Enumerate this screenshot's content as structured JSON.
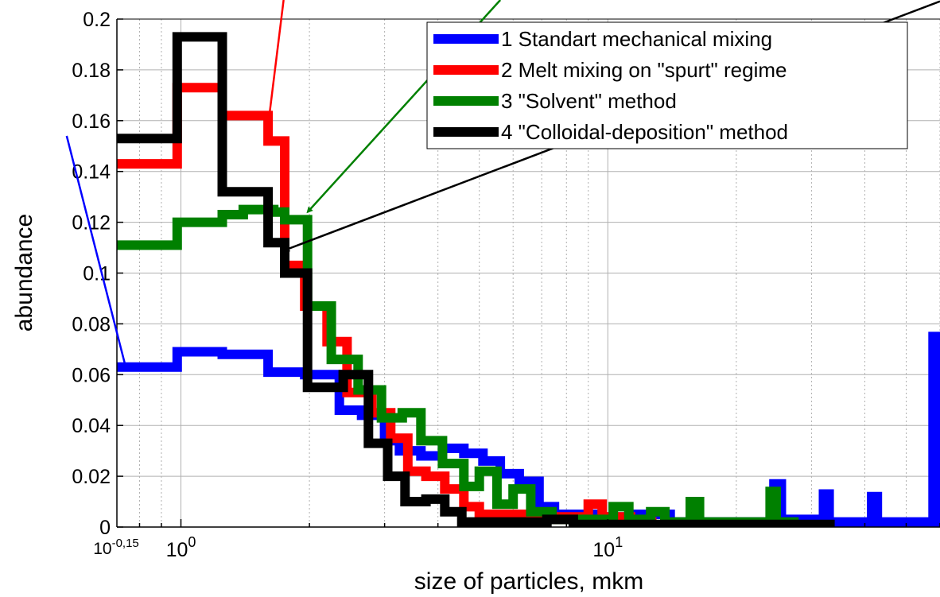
{
  "chart_data": {
    "type": "line",
    "step": true,
    "xscale": "log",
    "xlim": [
      0.708,
      60
    ],
    "ylim": [
      0,
      0.2
    ],
    "xlabel": "size of particles, mkm",
    "ylabel": "abundance",
    "grid": true,
    "legend_position": "top-right",
    "x_ticks": [
      {
        "value": 0.708,
        "base": "10",
        "exp": "-0,15"
      },
      {
        "value": 1,
        "base": "10",
        "exp": "0"
      },
      {
        "value": 10,
        "base": "10",
        "exp": "1"
      }
    ],
    "y_ticks": [
      "0",
      "0.02",
      "0.04",
      "0.06",
      "0.08",
      "0.1",
      "0.12",
      "0.14",
      "0.16",
      "0.18",
      "0.2"
    ],
    "series": [
      {
        "name": "1 Standart mechanical mixing",
        "color": "#0000ff",
        "points": [
          [
            0.708,
            0.063
          ],
          [
            0.98,
            0.063
          ],
          [
            0.98,
            0.069
          ],
          [
            1.25,
            0.069
          ],
          [
            1.25,
            0.068
          ],
          [
            1.6,
            0.068
          ],
          [
            1.6,
            0.061
          ],
          [
            1.95,
            0.061
          ],
          [
            1.95,
            0.06
          ],
          [
            2.35,
            0.06
          ],
          [
            2.35,
            0.046
          ],
          [
            2.65,
            0.046
          ],
          [
            2.65,
            0.044
          ],
          [
            3.0,
            0.044
          ],
          [
            3.0,
            0.034
          ],
          [
            3.25,
            0.034
          ],
          [
            3.25,
            0.03
          ],
          [
            3.65,
            0.03
          ],
          [
            3.65,
            0.028
          ],
          [
            4.1,
            0.028
          ],
          [
            4.1,
            0.031
          ],
          [
            4.6,
            0.031
          ],
          [
            4.6,
            0.029
          ],
          [
            5.1,
            0.029
          ],
          [
            5.1,
            0.026
          ],
          [
            5.6,
            0.026
          ],
          [
            5.6,
            0.021
          ],
          [
            6.2,
            0.021
          ],
          [
            6.2,
            0.018
          ],
          [
            6.9,
            0.018
          ],
          [
            6.9,
            0.008
          ],
          [
            7.5,
            0.008
          ],
          [
            7.5,
            0.005
          ],
          [
            9.5,
            0.005
          ],
          [
            9.5,
            0.004
          ],
          [
            11.5,
            0.004
          ],
          [
            11.5,
            0.005
          ],
          [
            14.0,
            0.005
          ],
          [
            14.0,
            0.002
          ],
          [
            24.5,
            0.002
          ],
          [
            24.5,
            0.017
          ],
          [
            25.5,
            0.017
          ],
          [
            25.5,
            0.003
          ],
          [
            32.0,
            0.003
          ],
          [
            32.0,
            0.013
          ],
          [
            33.0,
            0.013
          ],
          [
            33.0,
            0.002
          ],
          [
            41.5,
            0.002
          ],
          [
            41.5,
            0.012
          ],
          [
            42.8,
            0.012
          ],
          [
            42.8,
            0.002
          ],
          [
            57.8,
            0.002
          ],
          [
            57.8,
            0.075
          ],
          [
            59.4,
            0.075
          ],
          [
            59.4,
            0.0
          ]
        ]
      },
      {
        "name": "2 Melt mixing on \"spurt\" regime",
        "color": "#ff0000",
        "points": [
          [
            0.708,
            0.143
          ],
          [
            0.98,
            0.143
          ],
          [
            0.98,
            0.173
          ],
          [
            1.25,
            0.173
          ],
          [
            1.25,
            0.162
          ],
          [
            1.6,
            0.162
          ],
          [
            1.6,
            0.152
          ],
          [
            1.75,
            0.152
          ],
          [
            1.75,
            0.103
          ],
          [
            1.95,
            0.103
          ],
          [
            1.95,
            0.087
          ],
          [
            2.2,
            0.087
          ],
          [
            2.2,
            0.073
          ],
          [
            2.45,
            0.073
          ],
          [
            2.45,
            0.053
          ],
          [
            2.8,
            0.053
          ],
          [
            2.8,
            0.045
          ],
          [
            3.1,
            0.045
          ],
          [
            3.1,
            0.035
          ],
          [
            3.4,
            0.035
          ],
          [
            3.4,
            0.022
          ],
          [
            3.75,
            0.022
          ],
          [
            3.75,
            0.02
          ],
          [
            4.15,
            0.02
          ],
          [
            4.15,
            0.015
          ],
          [
            4.6,
            0.015
          ],
          [
            4.6,
            0.008
          ],
          [
            5.0,
            0.008
          ],
          [
            5.0,
            0.005
          ],
          [
            6.4,
            0.005
          ],
          [
            6.4,
            0.003
          ],
          [
            7.7,
            0.003
          ],
          [
            7.7,
            0.004
          ],
          [
            9.0,
            0.004
          ],
          [
            9.0,
            0.009
          ],
          [
            9.7,
            0.009
          ],
          [
            9.7,
            0.004
          ],
          [
            11.3,
            0.004
          ],
          [
            11.3,
            0.002
          ],
          [
            13.0,
            0.002
          ]
        ]
      },
      {
        "name": "3 \"Solvent\" method",
        "color": "#008000",
        "points": [
          [
            0.708,
            0.111
          ],
          [
            0.98,
            0.111
          ],
          [
            0.98,
            0.12
          ],
          [
            1.25,
            0.12
          ],
          [
            1.25,
            0.123
          ],
          [
            1.4,
            0.123
          ],
          [
            1.4,
            0.125
          ],
          [
            1.65,
            0.125
          ],
          [
            1.65,
            0.124
          ],
          [
            1.75,
            0.124
          ],
          [
            1.75,
            0.121
          ],
          [
            1.98,
            0.121
          ],
          [
            1.98,
            0.087
          ],
          [
            2.25,
            0.087
          ],
          [
            2.25,
            0.066
          ],
          [
            2.6,
            0.066
          ],
          [
            2.6,
            0.054
          ],
          [
            2.95,
            0.054
          ],
          [
            2.95,
            0.043
          ],
          [
            3.3,
            0.043
          ],
          [
            3.3,
            0.045
          ],
          [
            3.65,
            0.045
          ],
          [
            3.65,
            0.034
          ],
          [
            4.1,
            0.034
          ],
          [
            4.1,
            0.025
          ],
          [
            4.6,
            0.025
          ],
          [
            4.6,
            0.016
          ],
          [
            5.0,
            0.016
          ],
          [
            5.0,
            0.022
          ],
          [
            5.5,
            0.022
          ],
          [
            5.5,
            0.009
          ],
          [
            6.0,
            0.009
          ],
          [
            6.0,
            0.015
          ],
          [
            6.6,
            0.015
          ],
          [
            6.6,
            0.006
          ],
          [
            7.4,
            0.006
          ],
          [
            7.4,
            0.003
          ],
          [
            10.3,
            0.003
          ],
          [
            10.3,
            0.008
          ],
          [
            11.2,
            0.008
          ],
          [
            11.2,
            0.003
          ],
          [
            12.6,
            0.003
          ],
          [
            12.6,
            0.006
          ],
          [
            13.6,
            0.006
          ],
          [
            13.6,
            0.002
          ],
          [
            15.6,
            0.002
          ],
          [
            15.6,
            0.01
          ],
          [
            16.4,
            0.01
          ],
          [
            16.4,
            0.002
          ],
          [
            24.0,
            0.002
          ],
          [
            24.0,
            0.014
          ],
          [
            24.8,
            0.014
          ],
          [
            24.8,
            0.002
          ],
          [
            28.0,
            0.002
          ],
          [
            28.0,
            0.002
          ]
        ]
      },
      {
        "name": "4 \"Colloidal-deposition\" method",
        "color": "#000000",
        "points": [
          [
            0.708,
            0.153
          ],
          [
            0.98,
            0.153
          ],
          [
            0.98,
            0.193
          ],
          [
            1.25,
            0.193
          ],
          [
            1.25,
            0.132
          ],
          [
            1.6,
            0.132
          ],
          [
            1.6,
            0.112
          ],
          [
            1.75,
            0.112
          ],
          [
            1.75,
            0.1
          ],
          [
            1.98,
            0.1
          ],
          [
            1.98,
            0.055
          ],
          [
            2.4,
            0.055
          ],
          [
            2.4,
            0.06
          ],
          [
            2.75,
            0.06
          ],
          [
            2.75,
            0.033
          ],
          [
            3.05,
            0.033
          ],
          [
            3.05,
            0.02
          ],
          [
            3.35,
            0.02
          ],
          [
            3.35,
            0.01
          ],
          [
            3.75,
            0.01
          ],
          [
            3.75,
            0.011
          ],
          [
            4.15,
            0.011
          ],
          [
            4.15,
            0.006
          ],
          [
            4.55,
            0.006
          ],
          [
            4.55,
            0.002
          ],
          [
            7.2,
            0.002
          ],
          [
            7.2,
            0.003
          ],
          [
            8.3,
            0.003
          ],
          [
            8.3,
            0.001
          ],
          [
            12.5,
            0.001
          ],
          [
            12.5,
            0.001
          ],
          [
            34.0,
            0.001
          ]
        ]
      }
    ],
    "annotation_arrows": [
      {
        "color": "#0000ff",
        "from": [
          0.54,
          0.154
        ],
        "to": [
          0.745,
          0.062
        ]
      },
      {
        "color": "#ff0000",
        "from": [
          1.74,
          0.222
        ],
        "to": [
          1.6,
          0.158
        ]
      },
      {
        "color": "#008000",
        "from": [
          5.6,
          0.22
        ],
        "to": [
          1.98,
          0.124
        ]
      },
      {
        "color": "#000000",
        "from": [
          62,
          0.207
        ],
        "to": [
          1.75,
          0.109
        ]
      }
    ]
  }
}
